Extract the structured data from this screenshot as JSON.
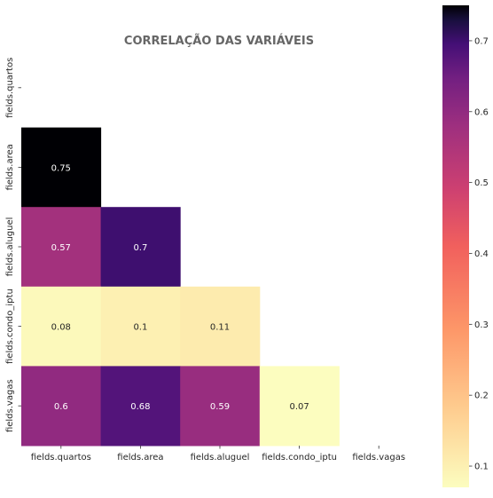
{
  "chart_data": {
    "type": "heatmap",
    "title": "CORRELAÇÃO DAS VARIÁVEIS",
    "xlabel": "",
    "ylabel": "",
    "x_categories": [
      "fields.quartos",
      "fields.area",
      "fields.aluguel",
      "fields.condo_iptu",
      "fields.vagas"
    ],
    "y_categories": [
      "fields.quartos",
      "fields.area",
      "fields.aluguel",
      "fields.condo_iptu",
      "fields.vagas"
    ],
    "values": [
      [
        null,
        null,
        null,
        null,
        null
      ],
      [
        0.75,
        null,
        null,
        null,
        null
      ],
      [
        0.57,
        0.7,
        null,
        null,
        null
      ],
      [
        0.08,
        0.1,
        0.11,
        null,
        null
      ],
      [
        0.6,
        0.68,
        0.59,
        0.07,
        null
      ]
    ],
    "colorscale": "magma_r",
    "colorbar": {
      "range": [
        0.07,
        0.75
      ],
      "ticks": [
        0.1,
        0.2,
        0.3,
        0.4,
        0.5,
        0.6,
        0.7
      ]
    }
  }
}
